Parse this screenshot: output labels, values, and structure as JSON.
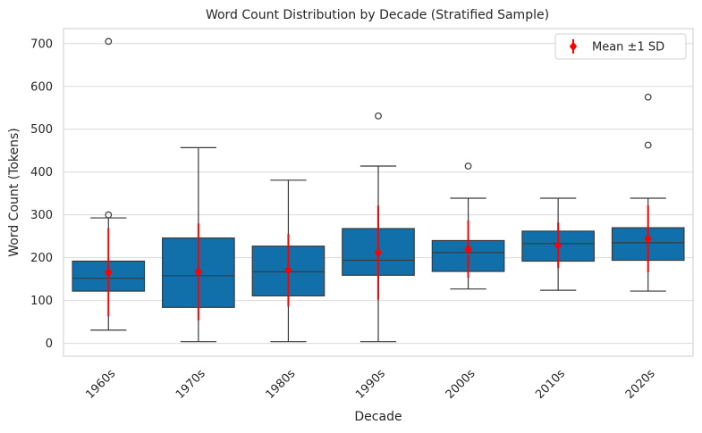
{
  "chart_data": {
    "type": "box",
    "title": "Word Count Distribution by Decade (Stratified Sample)",
    "xlabel": "Decade",
    "ylabel": "Word Count (Tokens)",
    "ylim": [
      -30,
      735
    ],
    "yticks": [
      0,
      100,
      200,
      300,
      400,
      500,
      600,
      700
    ],
    "grid": "horizontal",
    "legend": {
      "position": "top-right",
      "label": "Mean ±1 SD"
    },
    "colors": {
      "box": "#1170aa",
      "mean": "#ff0000",
      "line": "#3a3a3a",
      "grid": "#d9d9d9",
      "frame": "#cccccc"
    },
    "categories": [
      "1960s",
      "1970s",
      "1980s",
      "1990s",
      "2000s",
      "2010s",
      "2020s"
    ],
    "boxes": [
      {
        "q1": 122,
        "median": 152,
        "q3": 192,
        "whisker_low": 31,
        "whisker_high": 293,
        "outliers": [
          300,
          705
        ],
        "mean": 166,
        "sd": 103
      },
      {
        "q1": 84,
        "median": 158,
        "q3": 246,
        "whisker_low": 4,
        "whisker_high": 457,
        "outliers": [],
        "mean": 167,
        "sd": 113
      },
      {
        "q1": 111,
        "median": 167,
        "q3": 227,
        "whisker_low": 4,
        "whisker_high": 381,
        "outliers": [],
        "mean": 171,
        "sd": 85
      },
      {
        "q1": 159,
        "median": 194,
        "q3": 268,
        "whisker_low": 4,
        "whisker_high": 414,
        "outliers": [
          531
        ],
        "mean": 212,
        "sd": 110
      },
      {
        "q1": 168,
        "median": 212,
        "q3": 240,
        "whisker_low": 127,
        "whisker_high": 339,
        "outliers": [
          414
        ],
        "mean": 220,
        "sd": 67
      },
      {
        "q1": 192,
        "median": 233,
        "q3": 262,
        "whisker_low": 124,
        "whisker_high": 339,
        "outliers": [],
        "mean": 229,
        "sd": 53
      },
      {
        "q1": 194,
        "median": 235,
        "q3": 270,
        "whisker_low": 122,
        "whisker_high": 339,
        "outliers": [
          463,
          575
        ],
        "mean": 244,
        "sd": 78
      }
    ]
  }
}
